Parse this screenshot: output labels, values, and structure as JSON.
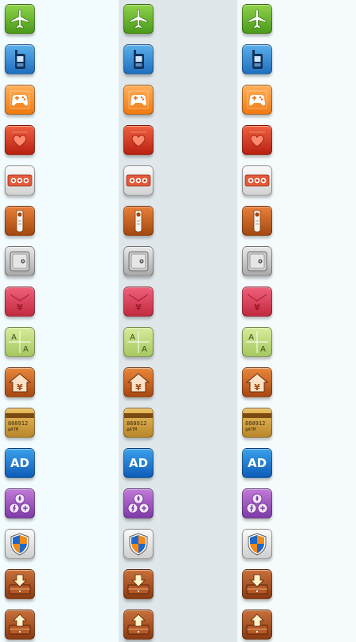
{
  "icons": [
    {
      "name": "airplane-icon",
      "bg": [
        "#8fd34a",
        "#4a9a1a"
      ]
    },
    {
      "name": "mobile-phone-icon",
      "bg": [
        "#5ab0ea",
        "#1f6fc0"
      ]
    },
    {
      "name": "gamepad-icon",
      "bg": [
        "#ffb05a",
        "#f07a10"
      ]
    },
    {
      "name": "heart-box-icon",
      "bg": [
        "#f06040",
        "#b82010"
      ]
    },
    {
      "name": "dots-panel-icon",
      "bg": [
        "#fafafa",
        "#d2d2d2"
      ]
    },
    {
      "name": "door-hanger-icon",
      "bg": [
        "#e8803a",
        "#a44810"
      ]
    },
    {
      "name": "safe-icon",
      "bg": [
        "#e8e8e8",
        "#a8a8a8"
      ]
    },
    {
      "name": "yuan-envelope-icon",
      "bg": [
        "#f0607a",
        "#c22a40"
      ]
    },
    {
      "name": "font-grid-icon",
      "bg": [
        "#d6ec9a",
        "#a6c860"
      ]
    },
    {
      "name": "house-icon",
      "bg": [
        "#e8863a",
        "#a84812"
      ]
    },
    {
      "name": "atm-card-icon",
      "bg": [
        "#ecc060",
        "#b8862a"
      ],
      "card_number": "860912",
      "card_label": "@ATM"
    },
    {
      "name": "ad-icon",
      "bg": [
        "#3aa0ea",
        "#0f5cb8"
      ],
      "label": "AD"
    },
    {
      "name": "purple-symbols-icon",
      "bg": [
        "#c07ad8",
        "#7e3aa8"
      ]
    },
    {
      "name": "shield-icon",
      "bg": [
        "#fafafa",
        "#cfcfcf"
      ]
    },
    {
      "name": "download-drawer-icon",
      "bg": [
        "#c8703a",
        "#8a3a12"
      ]
    },
    {
      "name": "upload-drawer-icon",
      "bg": [
        "#c8703a",
        "#8a3a12"
      ]
    }
  ]
}
